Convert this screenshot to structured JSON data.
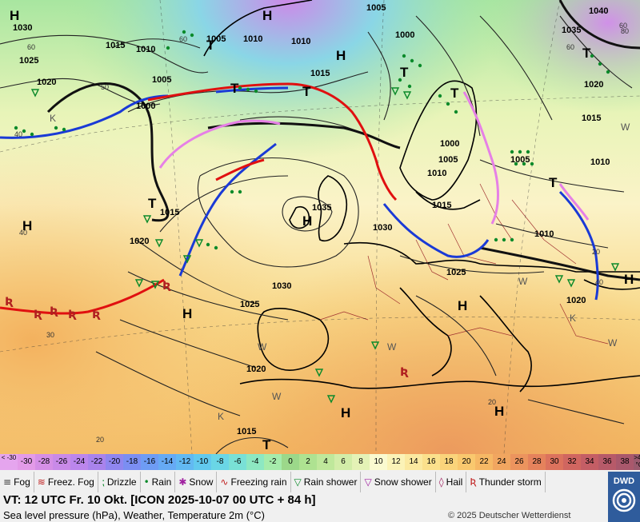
{
  "colors": {
    "isobar": "#222222",
    "cold_front": "#1a3ad6",
    "warm_front": "#e01010",
    "occluded_front": "#e680e6",
    "sea_north": "#9fe39f",
    "land_warm": "#f5c872",
    "coast": "#000000"
  },
  "map": {
    "high_label": "H",
    "low_label": "T",
    "isobars": [
      "1005",
      "1000",
      "1005",
      "1010",
      "1010",
      "1015",
      "1010",
      "1030",
      "1035",
      "1040",
      "1025",
      "1020",
      "1015",
      "1005",
      "1000",
      "1005",
      "1010",
      "1015",
      "1020",
      "1030",
      "1025",
      "1015",
      "1020",
      "1025",
      "1030",
      "1035",
      "1010",
      "1015",
      "1005",
      "1000",
      "1015",
      "1010",
      "1020",
      "1020"
    ],
    "temps": [
      "60",
      "60",
      "60",
      "50",
      "40",
      "40",
      "30",
      "20",
      "20",
      "20",
      "60",
      "40",
      "80"
    ],
    "letters_k": [
      "K",
      "K",
      "K"
    ],
    "letters_w": [
      "W",
      "W",
      "W",
      "W",
      "W",
      "W"
    ]
  },
  "legend": {
    "scale_values": [
      "-30",
      "-28",
      "-26",
      "-24",
      "-22",
      "-20",
      "-18",
      "-16",
      "-14",
      "-12",
      "-10",
      "-8",
      "-6",
      "-4",
      "-2",
      "0",
      "2",
      "4",
      "6",
      "8",
      "10",
      "12",
      "14",
      "16",
      "18",
      "20",
      "22",
      "24",
      "26",
      "28",
      "30",
      "32",
      "34",
      "36",
      "38"
    ],
    "scale_colors": [
      "#e39be8",
      "#d58fe6",
      "#c98ae8",
      "#bb86ec",
      "#a983ec",
      "#8f86ef",
      "#7b8ef2",
      "#6e9cf4",
      "#66aaf4",
      "#62b9f2",
      "#62c9ee",
      "#6ad6e6",
      "#79e0d6",
      "#8de8c2",
      "#a6ecab",
      "#9cd88a",
      "#aee291",
      "#bfe89b",
      "#d2eda8",
      "#e4f2b6",
      "#fafad0",
      "#fbf3b7",
      "#fbe9a0",
      "#fbe08c",
      "#fad47b",
      "#f9c86e",
      "#f6b865",
      "#f1a660",
      "#ec945e",
      "#e5825c",
      "#dc725d",
      "#d06660",
      "#c45e65",
      "#b75a69",
      "#a9586c"
    ],
    "corner_low": "< -30",
    "corner_high": ">40 °C",
    "symbols": [
      {
        "icon": "≡",
        "label": "Fog"
      },
      {
        "icon": "≋",
        "label": "Freez. Fog"
      },
      {
        "icon": "⁏",
        "label": "Drizzle"
      },
      {
        "icon": "•",
        "label": "Rain"
      },
      {
        "icon": "✱",
        "label": "Snow"
      },
      {
        "icon": "∿",
        "label": "Freezing rain"
      },
      {
        "icon": "▽",
        "label": "Rain shower"
      },
      {
        "icon": "▽",
        "label": "Snow shower"
      },
      {
        "icon": "◊",
        "label": "Hail"
      },
      {
        "icon": "Ʀ",
        "label": "Thunder storm"
      }
    ],
    "vt_text": "VT: 12 UTC Fr.  10 Okt. [ICON 2025-10-07  00 UTC + 84 h]",
    "subtitle": "Sea level pressure (hPa), Weather, Temperature 2m (°C)",
    "copyright": "© 2025 Deutscher Wetterdienst",
    "brand": "DWD"
  }
}
